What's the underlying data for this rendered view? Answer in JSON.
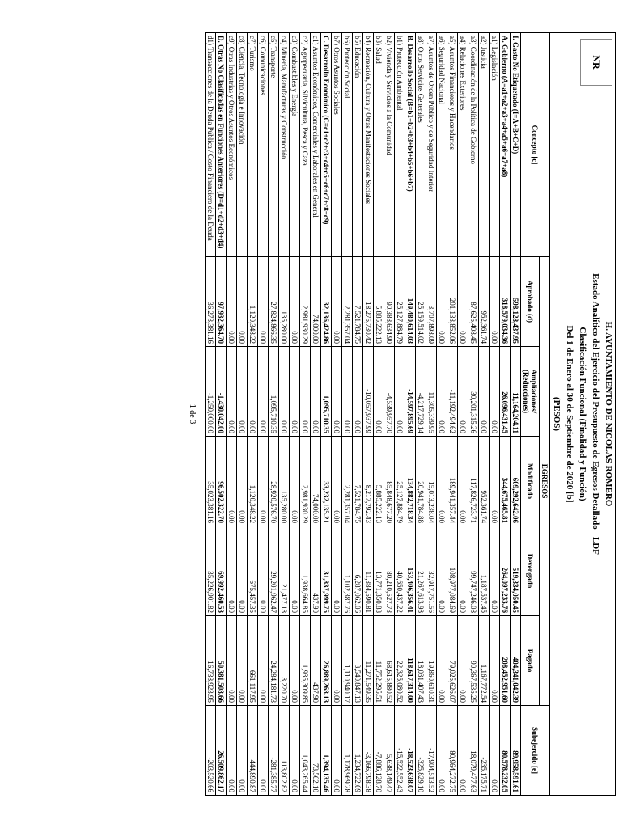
{
  "header": {
    "line1": "H. AYUNTAMIENTO DE NICOLAS ROMERO",
    "line2": "Estado Analítico del Ejercicio del Presupuesto de Egresos Detallado - LDF",
    "line3": "Clasificación Funcional (Finalidad y Función)",
    "line4": "Del 1 de Enero al 30 de Septiembre de 2020 [b]",
    "line5": "(PESOS)"
  },
  "logo": {
    "top": "NR",
    "bottom": ""
  },
  "columns": {
    "concepto": "Concepto [c]",
    "egresos": "EGRESOS",
    "aprobado": "Aprobado (d)",
    "ampliaciones": "Ampliaciones/ (Reducciones)",
    "modificado": "Modificado",
    "devengado": "Devengado",
    "pagado": "Pagado",
    "subejercido": "Subejercido [e]"
  },
  "rows": [
    {
      "b": true,
      "c": "I. Gasto No Etiquetado (I=A+B+C+D)",
      "a": "598,128,437.95",
      "m": "11,164,204.11",
      "md": "609,292,642.06",
      "d": "519,334,050.45",
      "p": "404,341,042.39",
      "s": "89,958,591.61"
    },
    {
      "b": true,
      "c": "A. Gobierno (A=a1+a2+a3+a4+a5+a6+a7+a8)",
      "a": "318,579,034.36",
      "m": "26,096,431.45",
      "md": "344,675,465.81",
      "d": "264,097,233.76",
      "p": "208,452,951.60",
      "s": "80,578,232.05"
    },
    {
      "c": "a1) Legislación",
      "a": "0.00",
      "m": "0.00",
      "md": "0.00",
      "d": "0.00",
      "p": "0.00",
      "s": "0.00"
    },
    {
      "c": "a2) Justicia",
      "a": "952,361.74",
      "m": "0.00",
      "md": "952,361.74",
      "d": "1,187,537.45",
      "p": "1,167,772.54",
      "s": "-235,175.71"
    },
    {
      "c": "a3) Coordinación de la Política de Gobierno",
      "a": "87,625,408.45",
      "m": "30,201,315.26",
      "md": "117,826,723.71",
      "d": "99,747,246.08",
      "p": "90,367,535.25",
      "s": "18,079,477.63"
    },
    {
      "c": "a4) Relaciones Exteriores",
      "a": "0.00",
      "m": "0.00",
      "md": "0.00",
      "d": "0.00",
      "p": "0.00",
      "s": "0.00"
    },
    {
      "c": "a5) Asuntos Financieros y Hacendarios",
      "a": "201,133,852.06",
      "m": "-11,192,494.62",
      "md": "189,941,357.44",
      "d": "108,977,084.69",
      "p": "79,025,626.07",
      "s": "80,964,272.75"
    },
    {
      "c": "a6) Seguridad Nacional",
      "a": "0.00",
      "m": "0.00",
      "md": "0.00",
      "d": "0.00",
      "p": "0.00",
      "s": "0.00"
    },
    {
      "c": "a7) Asuntos de Orden Público y de Seguridad Interior",
      "a": "3,707,898.09",
      "m": "11,305,339.95",
      "md": "15,013,238.04",
      "d": "32,917,751.56",
      "p": "19,860,610.31",
      "s": "-17,904,513.52"
    },
    {
      "c": "a8) Otros Servicios Generales",
      "a": "25,159,514.02",
      "m": "-4,217,729.14",
      "md": "20,941,784.88",
      "d": "21,267,613.98",
      "p": "18,031,407.43",
      "s": "-325,829.10"
    },
    {
      "b": true,
      "c": "B. Desarrollo Social (B=b1+b2+b3+b4+b5+b6+b7)",
      "a": "149,480,614.03",
      "m": "-14,597,895.69",
      "md": "134,882,718.34",
      "d": "153,406,356.41",
      "p": "118,617,314.00",
      "s": "-18,523,638.07"
    },
    {
      "c": "b1) Protección Ambiental",
      "a": "25,127,884.79",
      "m": "0.00",
      "md": "25,127,884.79",
      "d": "40,650,437.22",
      "p": "22,325,080.52",
      "s": "-15,522,552.43"
    },
    {
      "c": "b2) Vivienda y Servicios a la Comunidad",
      "a": "90,388,634.90",
      "m": "-4,539,957.70",
      "md": "85,848,677.20",
      "d": "80,210,527.73",
      "p": "68,615,880.52",
      "s": "5,638,149.47"
    },
    {
      "c": "b3) Salud",
      "a": "5,885,222.13",
      "m": "0.00",
      "md": "5,885,222.13",
      "d": "13,771,350.83",
      "p": "11,752,295.51",
      "s": "-7,886,128.70"
    },
    {
      "c": "b4) Recreación, Cultura y Otras Manifestaciones Sociales",
      "a": "18,275,730.42",
      "m": "-10,057,937.99",
      "md": "8,217,792.43",
      "d": "11,384,590.81",
      "p": "11,271,549.35",
      "s": "-3,166,798.38"
    },
    {
      "c": "b5) Educación",
      "a": "7,521,784.75",
      "m": "0.00",
      "md": "7,521,784.75",
      "d": "6,287,062.06",
      "p": "3,540,847.13",
      "s": "1,234,722.69"
    },
    {
      "c": "b6) Protección Social",
      "a": "2,281,357.04",
      "m": "0.00",
      "md": "2,281,357.04",
      "d": "1,102,387.76",
      "p": "1,110,940.17",
      "s": "1,178,969.28"
    },
    {
      "c": "b7) Otros Asuntos Sociales",
      "a": "0.00",
      "m": "0.00",
      "md": "0.00",
      "d": "0.00",
      "p": "0.00",
      "s": "0.00"
    },
    {
      "b": true,
      "c": "C. Desarrollo Económico (C=c1+c2+c3+c4+c5+c6+c7+c8+c9)",
      "a": "32,136,424.86",
      "m": "1,095,710.35",
      "md": "33,232,135.21",
      "d": "31,837,999.75",
      "p": "26,889,268.13",
      "s": "1,394,135.46"
    },
    {
      "c": "c1) Asuntos Económicos, Comerciales y Laborales en General",
      "a": "74,000.00",
      "m": "0.00",
      "md": "74,000.00",
      "d": "437.90",
      "p": "437.90",
      "s": "73,562.10"
    },
    {
      "c": "c2) Agropecuaria, Silvicultura, Pesca y Caza",
      "a": "2,981,930.29",
      "m": "0.00",
      "md": "2,981,930.29",
      "d": "1,938,664.85",
      "p": "1,935,309.85",
      "s": "1,043,265.44"
    },
    {
      "c": "c3) Combustibles y Energía",
      "a": "0.00",
      "m": "0.00",
      "md": "0.00",
      "d": "0.00",
      "p": "0.00",
      "s": "0.00"
    },
    {
      "c": "c4) Minería, Manufacturas y Construcción",
      "a": "135,280.00",
      "m": "0.00",
      "md": "135,280.00",
      "d": "21,477.18",
      "p": "8,220.70",
      "s": "113,802.82"
    },
    {
      "c": "c5) Transporte",
      "a": "27,824,866.35",
      "m": "1,095,710.35",
      "md": "28,920,576.70",
      "d": "29,201,962.47",
      "p": "24,284,181.73",
      "s": "-281,385.77"
    },
    {
      "c": "c6) Comunicaciones",
      "a": "0.00",
      "m": "0.00",
      "md": "0.00",
      "d": "0.00",
      "p": "0.00",
      "s": "0.00"
    },
    {
      "c": "c7) Turismo",
      "a": "1,120,348.22",
      "m": "0.00",
      "md": "1,120,348.22",
      "d": "675,457.35",
      "p": "661,117.95",
      "s": "444,890.87"
    },
    {
      "c": "c8) Ciencia, Tecnología e Innovación",
      "a": "0.00",
      "m": "0.00",
      "md": "0.00",
      "d": "0.00",
      "p": "0.00",
      "s": "0.00"
    },
    {
      "c": "c9) Otras Industrias y Otros Asuntos Económicos",
      "a": "0.00",
      "m": "0.00",
      "md": "0.00",
      "d": "0.00",
      "p": "0.00",
      "s": "0.00"
    },
    {
      "b": true,
      "c": "D. Otras No Clasificadas en Funciones Anteriores (D=d1+d2+d3+d4)",
      "a": "97,932,364.70",
      "m": "-1,430,042.00",
      "md": "96,502,322.70",
      "d": "69,992,460.53",
      "p": "50,381,508.66",
      "s": "26,509,862.17"
    },
    {
      "c": "d1) Transacciones de la Deuda Pública / Costo Financiero de la Deuda",
      "a": "36,273,381.16",
      "m": "-1,250,000.00",
      "md": "35,023,381.16",
      "d": "35,226,901.82",
      "p": "16,738,923.95",
      "s": "-203,520.66"
    }
  ],
  "footer": "1 de 3"
}
